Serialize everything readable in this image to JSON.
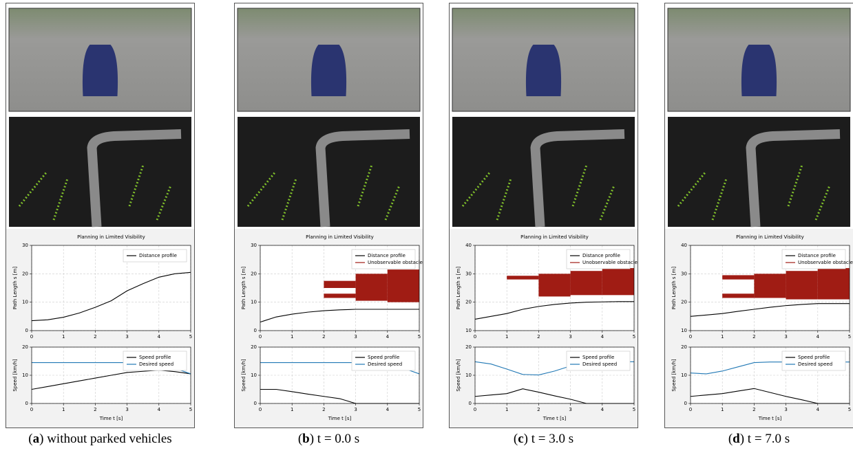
{
  "captions": [
    {
      "label": "a",
      "text": "without parked vehicles"
    },
    {
      "label": "b",
      "text": "t = 0.0 s"
    },
    {
      "label": "c",
      "text": "t = 3.0 s"
    },
    {
      "label": "d",
      "text": "t = 7.0 s"
    }
  ],
  "chart_data": [
    {
      "type": "line",
      "title": "Planning in Limited Visibility",
      "y_label": "Path Length s [m]",
      "x": [
        0,
        0.5,
        1,
        1.5,
        2,
        2.5,
        3,
        3.5,
        4,
        4.5,
        5
      ],
      "xlim": [
        0,
        5
      ],
      "xticks": [
        0,
        1,
        2,
        3,
        4,
        5
      ],
      "ylim": [
        0,
        30
      ],
      "yticks": [
        0,
        10,
        20,
        30
      ],
      "grid": true,
      "legend": "upper right",
      "series": [
        {
          "name": "Distance profile",
          "color": "#000000",
          "values": [
            3.5,
            3.8,
            4.7,
            6.2,
            8.2,
            10.5,
            14,
            16.5,
            18.8,
            20,
            20.5
          ]
        }
      ]
    },
    {
      "type": "line",
      "x_label": "Time t [s]",
      "y_label": "Speed [km/h]",
      "x": [
        0,
        0.5,
        1,
        1.5,
        2,
        2.5,
        3,
        3.5,
        4,
        4.5,
        5
      ],
      "xlim": [
        0,
        5
      ],
      "xticks": [
        0,
        1,
        2,
        3,
        4,
        5
      ],
      "ylim": [
        0,
        20
      ],
      "yticks": [
        0,
        10,
        20
      ],
      "grid": true,
      "legend": "upper right",
      "series": [
        {
          "name": "Speed profile",
          "color": "#000000",
          "values": [
            5,
            6,
            7,
            8,
            9,
            10,
            11,
            11.4,
            11.8,
            11.3,
            10.5
          ]
        },
        {
          "name": "Desired speed",
          "color": "#1f77b4",
          "values": [
            14.5,
            14.5,
            14.5,
            14.5,
            14.5,
            14.5,
            14.5,
            14.5,
            14.5,
            12.5,
            10.5
          ]
        }
      ]
    },
    {
      "type": "line",
      "title": "Planning in Limited Visibility",
      "y_label": "Path Length s [m]",
      "x": [
        0,
        0.5,
        1,
        1.5,
        2,
        2.5,
        3,
        3.5,
        4,
        4.5,
        5
      ],
      "xlim": [
        0,
        5
      ],
      "xticks": [
        0,
        1,
        2,
        3,
        4,
        5
      ],
      "ylim": [
        0,
        30
      ],
      "yticks": [
        0,
        10,
        20,
        30
      ],
      "grid": true,
      "legend": "upper right",
      "series": [
        {
          "name": "Distance profile",
          "color": "#000000",
          "values": [
            3,
            4.8,
            5.8,
            6.5,
            7,
            7.3,
            7.5,
            7.5,
            7.5,
            7.5,
            7.5
          ]
        },
        {
          "name": "Unobservable obstacle",
          "color": "#a01c14",
          "boxes": [
            [
              2,
              3,
              15,
              17.5
            ],
            [
              2,
              3,
              11.5,
              13
            ],
            [
              3,
              4,
              10.5,
              20
            ],
            [
              4,
              5,
              10,
              21.5
            ]
          ]
        }
      ]
    },
    {
      "type": "line",
      "x_label": "Time t [s]",
      "y_label": "Speed [km/h]",
      "x": [
        0,
        0.5,
        1,
        1.5,
        2,
        2.5,
        3,
        3.5,
        4,
        4.5,
        5
      ],
      "xlim": [
        0,
        5
      ],
      "xticks": [
        0,
        1,
        2,
        3,
        4,
        5
      ],
      "ylim": [
        0,
        20
      ],
      "yticks": [
        0,
        10,
        20
      ],
      "grid": true,
      "legend": "upper right",
      "series": [
        {
          "name": "Speed profile",
          "color": "#000000",
          "values": [
            5,
            5,
            4.2,
            3.3,
            2.5,
            1.7,
            0,
            0,
            0,
            0,
            0
          ]
        },
        {
          "name": "Desired speed",
          "color": "#1f77b4",
          "values": [
            14.5,
            14.5,
            14.5,
            14.5,
            14.5,
            14.5,
            14.5,
            14.5,
            14.5,
            12.5,
            10.5
          ]
        }
      ]
    },
    {
      "type": "line",
      "title": "Planning in Limited Visibility",
      "y_label": "Path Length s [m]",
      "x": [
        0,
        0.5,
        1,
        1.5,
        2,
        2.5,
        3,
        3.5,
        4,
        4.5,
        5
      ],
      "xlim": [
        0,
        5
      ],
      "xticks": [
        0,
        1,
        2,
        3,
        4,
        5
      ],
      "ylim": [
        10,
        40
      ],
      "yticks": [
        10,
        20,
        30,
        40
      ],
      "grid": true,
      "legend": "upper right",
      "series": [
        {
          "name": "Distance profile",
          "color": "#000000",
          "values": [
            14,
            15,
            16,
            17.5,
            18.5,
            19.2,
            19.7,
            20,
            20.1,
            20.2,
            20.2
          ]
        },
        {
          "name": "Unobservable obstacle",
          "color": "#a01c14",
          "boxes": [
            [
              1,
              2,
              28,
              29.3
            ],
            [
              2,
              3,
              22,
              30
            ],
            [
              3,
              4,
              22.5,
              31
            ],
            [
              4,
              5,
              22.5,
              32
            ]
          ]
        }
      ]
    },
    {
      "type": "line",
      "x_label": "Time t [s]",
      "y_label": "Speed [km/h]",
      "x": [
        0,
        0.5,
        1,
        1.5,
        2,
        2.5,
        3,
        3.5,
        4,
        4.5,
        5
      ],
      "xlim": [
        0,
        5
      ],
      "xticks": [
        0,
        1,
        2,
        3,
        4,
        5
      ],
      "ylim": [
        0,
        20
      ],
      "yticks": [
        0,
        10,
        20
      ],
      "grid": true,
      "legend": "upper right",
      "series": [
        {
          "name": "Speed profile",
          "color": "#000000",
          "values": [
            2.5,
            3,
            3.5,
            5.2,
            4,
            2.7,
            1.5,
            0,
            0,
            0,
            0
          ]
        },
        {
          "name": "Desired speed",
          "color": "#1f77b4",
          "values": [
            14.8,
            14,
            12.2,
            10.3,
            10.1,
            11.5,
            13.3,
            14.5,
            14.8,
            14.8,
            14.8
          ]
        }
      ]
    },
    {
      "type": "line",
      "title": "Planning in Limited Visibility",
      "y_label": "Path Length s [m]",
      "x": [
        0,
        0.5,
        1,
        1.5,
        2,
        2.5,
        3,
        3.5,
        4,
        4.5,
        5
      ],
      "xlim": [
        0,
        5
      ],
      "xticks": [
        0,
        1,
        2,
        3,
        4,
        5
      ],
      "ylim": [
        10,
        40
      ],
      "yticks": [
        10,
        20,
        30,
        40
      ],
      "grid": true,
      "legend": "upper right",
      "series": [
        {
          "name": "Distance profile",
          "color": "#000000",
          "values": [
            15,
            15.5,
            16,
            16.8,
            17.5,
            18.2,
            18.8,
            19.2,
            19.5,
            19.5,
            19.5
          ]
        },
        {
          "name": "Unobservable obstacle",
          "color": "#a01c14",
          "boxes": [
            [
              1,
              2,
              28,
              29.5
            ],
            [
              1,
              2,
              21.5,
              23
            ],
            [
              2,
              3,
              21.5,
              30
            ],
            [
              3,
              4,
              21,
              31
            ],
            [
              4,
              5,
              21,
              32
            ]
          ]
        }
      ]
    },
    {
      "type": "line",
      "x_label": "Time t [s]",
      "y_label": "Speed [km/h]",
      "x": [
        0,
        0.5,
        1,
        1.5,
        2,
        2.5,
        3,
        3.5,
        4,
        4.5,
        5
      ],
      "xlim": [
        0,
        5
      ],
      "xticks": [
        0,
        1,
        2,
        3,
        4,
        5
      ],
      "ylim": [
        0,
        20
      ],
      "yticks": [
        0,
        10,
        20
      ],
      "grid": true,
      "legend": "upper right",
      "series": [
        {
          "name": "Speed profile",
          "color": "#000000",
          "values": [
            2.5,
            3,
            3.5,
            4.4,
            5.3,
            3.9,
            2.5,
            1.3,
            0,
            0,
            0
          ]
        },
        {
          "name": "Desired speed",
          "color": "#1f77b4",
          "values": [
            10.8,
            10.5,
            11.5,
            13,
            14.5,
            14.7,
            14.7,
            14.7,
            14.7,
            14.7,
            14.7
          ]
        }
      ]
    }
  ]
}
